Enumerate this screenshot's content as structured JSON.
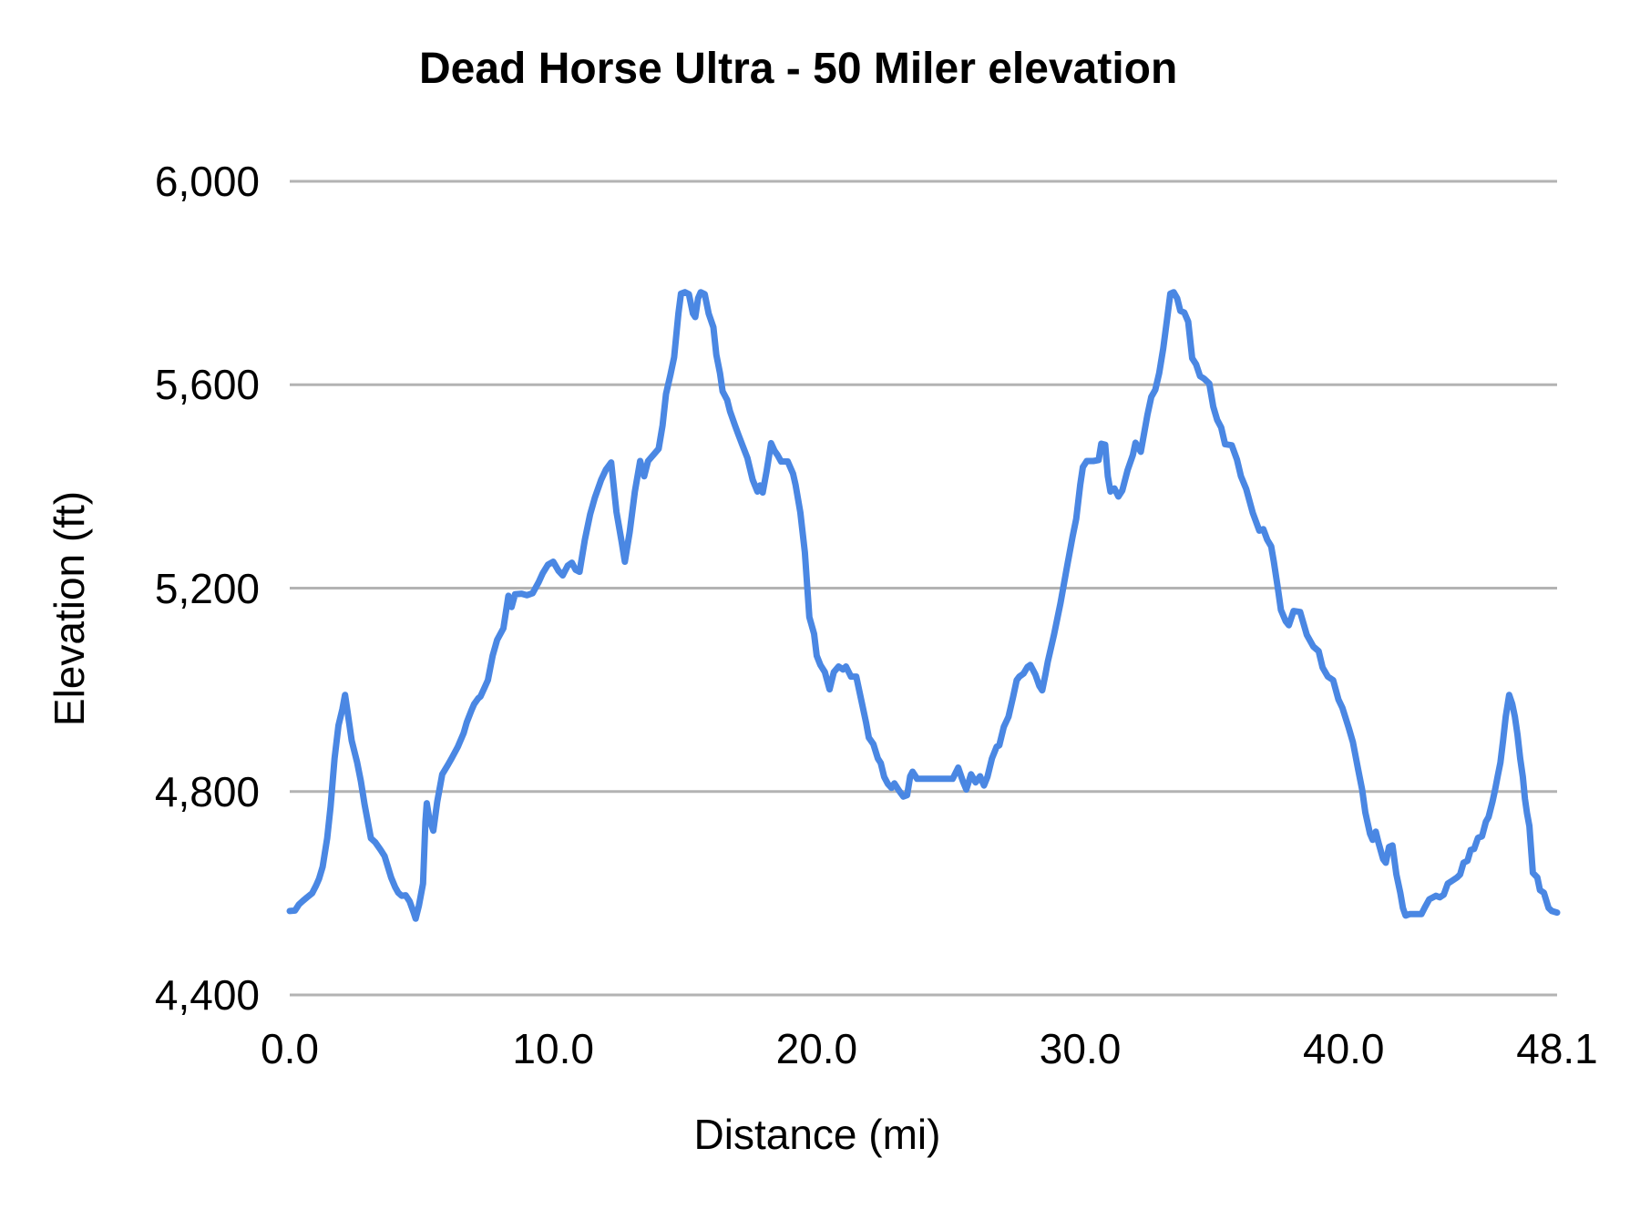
{
  "title": "Dead Horse Ultra - 50 Miler elevation",
  "axes": {
    "x_title": "Distance (mi)",
    "y_title": "Elevation (ft)"
  },
  "chart_data": {
    "type": "line",
    "title": "Dead Horse Ultra - 50 Miler elevation",
    "xlabel": "Distance (mi)",
    "ylabel": "Elevation (ft)",
    "xlim": [
      0,
      48.1
    ],
    "ylim": [
      4400,
      6000
    ],
    "grid": true,
    "legend": "none",
    "line_color": "#4a87e3",
    "gridline_color": "#b3b3b3",
    "background_color": "#ffffff",
    "x_ticks": [
      "0.0",
      "10.0",
      "20.0",
      "30.0",
      "40.0",
      "48.1"
    ],
    "x_tick_values": [
      0,
      10,
      20,
      30,
      40,
      48.1
    ],
    "y_ticks": [
      "4,400",
      "4,800",
      "5,200",
      "5,600",
      "6,000"
    ],
    "y_tick_values": [
      4400,
      4800,
      5200,
      5600,
      6000
    ],
    "series": [
      {
        "name": "elevation",
        "x": [
          0.0,
          0.2,
          0.35,
          0.5,
          0.66,
          0.85,
          1.0,
          1.11,
          1.25,
          1.42,
          1.55,
          1.7,
          1.85,
          2.0,
          2.1,
          2.2,
          2.35,
          2.56,
          2.7,
          2.84,
          3.0,
          3.08,
          3.25,
          3.45,
          3.6,
          3.85,
          4.0,
          4.12,
          4.25,
          4.4,
          4.55,
          4.71,
          4.78,
          4.9,
          5.06,
          5.15,
          5.2,
          5.3,
          5.45,
          5.6,
          5.79,
          6.0,
          6.14,
          6.38,
          6.6,
          6.72,
          6.9,
          7.0,
          7.15,
          7.24,
          7.4,
          7.52,
          7.7,
          7.87,
          8.11,
          8.3,
          8.42,
          8.55,
          8.8,
          9.0,
          9.22,
          9.45,
          9.6,
          9.8,
          10.0,
          10.2,
          10.36,
          10.55,
          10.71,
          10.85,
          11.0,
          11.2,
          11.4,
          11.58,
          11.82,
          12.0,
          12.2,
          12.4,
          12.6,
          12.72,
          12.9,
          13.1,
          13.3,
          13.45,
          13.6,
          13.8,
          14.0,
          14.15,
          14.28,
          14.45,
          14.59,
          14.75,
          14.85,
          15.0,
          15.15,
          15.3,
          15.39,
          15.5,
          15.6,
          15.75,
          15.9,
          16.08,
          16.19,
          16.33,
          16.43,
          16.6,
          16.71,
          16.9,
          17.02,
          17.19,
          17.37,
          17.57,
          17.75,
          17.85,
          17.95,
          18.1,
          18.27,
          18.4,
          18.51,
          18.65,
          18.9,
          19.1,
          19.2,
          19.38,
          19.55,
          19.72,
          19.9,
          20.0,
          20.14,
          20.31,
          20.49,
          20.65,
          20.83,
          21.0,
          21.11,
          21.3,
          21.5,
          21.7,
          21.87,
          21.98,
          22.15,
          22.32,
          22.43,
          22.56,
          22.7,
          22.84,
          22.95,
          23.12,
          23.29,
          23.43,
          23.55,
          23.64,
          23.81,
          24.2,
          24.6,
          25.0,
          25.16,
          25.37,
          25.55,
          25.68,
          25.86,
          26.03,
          26.2,
          26.35,
          26.48,
          26.65,
          26.83,
          26.93,
          27.1,
          27.28,
          27.45,
          27.59,
          27.69,
          27.85,
          28.0,
          28.11,
          28.3,
          28.45,
          28.56,
          28.68,
          28.77,
          29.01,
          29.25,
          29.5,
          29.71,
          29.85,
          30.0,
          30.1,
          30.25,
          30.5,
          30.7,
          30.8,
          30.95,
          31.05,
          31.15,
          31.3,
          31.45,
          31.6,
          31.8,
          32.0,
          32.1,
          32.3,
          32.55,
          32.7,
          32.85,
          33.0,
          33.15,
          33.3,
          33.42,
          33.55,
          33.68,
          33.8,
          33.95,
          34.1,
          34.25,
          34.4,
          34.55,
          34.7,
          34.9,
          35.05,
          35.2,
          35.35,
          35.5,
          35.75,
          35.95,
          36.1,
          36.3,
          36.55,
          36.8,
          36.95,
          37.1,
          37.25,
          37.35,
          37.5,
          37.62,
          37.8,
          37.92,
          38.1,
          38.35,
          38.6,
          38.85,
          39.05,
          39.2,
          39.4,
          39.6,
          39.8,
          39.95,
          40.2,
          40.35,
          40.55,
          40.7,
          40.82,
          41.0,
          41.1,
          41.22,
          41.32,
          41.5,
          41.6,
          41.72,
          41.85,
          42.0,
          42.15,
          42.25,
          42.35,
          42.5,
          42.75,
          42.95,
          43.1,
          43.25,
          43.5,
          43.65,
          43.8,
          43.95,
          44.1,
          44.3,
          44.42,
          44.55,
          44.7,
          44.82,
          44.95,
          45.1,
          45.25,
          45.4,
          45.5,
          45.65,
          45.75,
          45.85,
          45.95,
          46.05,
          46.15,
          46.28,
          46.4,
          46.5,
          46.6,
          46.7,
          46.8,
          46.88,
          46.96,
          47.05,
          47.18,
          47.35,
          47.45,
          47.6,
          47.78,
          47.9,
          48.1
        ],
        "y": [
          4565,
          4566,
          4578,
          4585,
          4592,
          4600,
          4615,
          4628,
          4652,
          4708,
          4770,
          4865,
          4930,
          4962,
          4990,
          4955,
          4900,
          4857,
          4820,
          4775,
          4730,
          4708,
          4700,
          4685,
          4673,
          4631,
          4612,
          4601,
          4595,
          4596,
          4584,
          4561,
          4550,
          4575,
          4619,
          4740,
          4777,
          4745,
          4723,
          4780,
          4834,
          4852,
          4865,
          4888,
          4915,
          4936,
          4960,
          4972,
          4983,
          4987,
          5005,
          5019,
          5067,
          5098,
          5121,
          5185,
          5163,
          5188,
          5189,
          5186,
          5190,
          5212,
          5229,
          5246,
          5252,
          5234,
          5225,
          5244,
          5250,
          5236,
          5232,
          5295,
          5345,
          5378,
          5413,
          5433,
          5447,
          5350,
          5290,
          5252,
          5310,
          5390,
          5450,
          5420,
          5450,
          5462,
          5474,
          5520,
          5582,
          5620,
          5654,
          5740,
          5779,
          5782,
          5778,
          5740,
          5733,
          5770,
          5782,
          5778,
          5740,
          5713,
          5659,
          5623,
          5587,
          5570,
          5548,
          5520,
          5503,
          5480,
          5456,
          5413,
          5390,
          5402,
          5388,
          5430,
          5485,
          5470,
          5462,
          5449,
          5449,
          5425,
          5403,
          5349,
          5270,
          5143,
          5110,
          5067,
          5049,
          5035,
          5001,
          5035,
          5046,
          5040,
          5046,
          5026,
          5026,
          4978,
          4936,
          4906,
          4893,
          4865,
          4856,
          4829,
          4815,
          4807,
          4816,
          4802,
          4790,
          4793,
          4830,
          4839,
          4825,
          4825,
          4825,
          4825,
          4825,
          4847,
          4820,
          4804,
          4834,
          4818,
          4830,
          4812,
          4829,
          4865,
          4888,
          4891,
          4927,
          4947,
          4985,
          5019,
          5026,
          5032,
          5045,
          5049,
          5030,
          5008,
          4999,
          5030,
          5055,
          5109,
          5170,
          5242,
          5301,
          5336,
          5403,
          5438,
          5450,
          5450,
          5452,
          5484,
          5482,
          5420,
          5390,
          5396,
          5380,
          5392,
          5432,
          5462,
          5486,
          5468,
          5540,
          5576,
          5590,
          5623,
          5671,
          5730,
          5779,
          5782,
          5770,
          5745,
          5742,
          5724,
          5652,
          5640,
          5617,
          5612,
          5602,
          5557,
          5531,
          5516,
          5483,
          5481,
          5453,
          5420,
          5395,
          5348,
          5313,
          5316,
          5295,
          5282,
          5252,
          5200,
          5157,
          5135,
          5127,
          5155,
          5153,
          5108,
          5085,
          5076,
          5044,
          5026,
          5019,
          4981,
          4965,
          4924,
          4897,
          4843,
          4804,
          4759,
          4717,
          4705,
          4721,
          4700,
          4667,
          4660,
          4691,
          4694,
          4637,
          4601,
          4571,
          4556,
          4559,
          4559,
          4559,
          4574,
          4588,
          4595,
          4592,
          4597,
          4619,
          4624,
          4631,
          4637,
          4660,
          4664,
          4685,
          4687,
          4709,
          4712,
          4741,
          4750,
          4780,
          4804,
          4831,
          4857,
          4900,
          4947,
          4990,
          4972,
          4947,
          4911,
          4865,
          4829,
          4786,
          4757,
          4732,
          4640,
          4631,
          4606,
          4601,
          4571,
          4565,
          4562
        ]
      }
    ]
  }
}
